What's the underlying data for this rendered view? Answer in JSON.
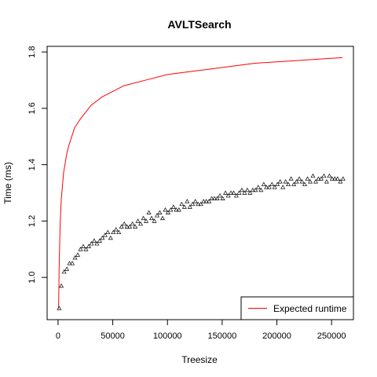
{
  "chart_data": {
    "type": "scatter",
    "title": "AVLTSearch",
    "xlabel": "Treesize",
    "ylabel": "Time (ms)",
    "xlim": [
      -10000,
      270000
    ],
    "ylim": [
      0.85,
      1.82
    ],
    "x_ticks": [
      0,
      50000,
      100000,
      150000,
      200000,
      250000
    ],
    "y_ticks": [
      1.0,
      1.2,
      1.4,
      1.6,
      1.8
    ],
    "legend": {
      "position": "bottom-right",
      "entries": [
        "Expected runtime"
      ]
    },
    "colors": {
      "expected": "#ff0000",
      "measured": "#000000"
    },
    "series": [
      {
        "type": "scatter",
        "marker": "triangle",
        "x": [
          1000,
          3000,
          5500,
          8000,
          10500,
          13000,
          15500,
          18000,
          20500,
          23000,
          25500,
          28000,
          30500,
          33000,
          35500,
          38000,
          40500,
          43000,
          45500,
          48000,
          50500,
          53000,
          55500,
          58000,
          60500,
          63000,
          65500,
          68000,
          70500,
          73000,
          75500,
          78000,
          80500,
          83000,
          85500,
          88000,
          90500,
          93000,
          95500,
          98000,
          100500,
          103000,
          105500,
          108000,
          110500,
          113000,
          115500,
          118000,
          120500,
          123000,
          125500,
          128000,
          130500,
          133000,
          135500,
          138000,
          140500,
          143000,
          145500,
          148000,
          150500,
          153000,
          155500,
          158000,
          160500,
          163000,
          165500,
          168000,
          170500,
          173000,
          175500,
          178000,
          180500,
          183000,
          185500,
          188000,
          190500,
          193000,
          195500,
          198000,
          200500,
          203000,
          205500,
          208000,
          210500,
          213000,
          215500,
          218000,
          220500,
          223000,
          225500,
          228000,
          230500,
          233000,
          235500,
          238000,
          240500,
          243000,
          245500,
          248000,
          250500,
          253000,
          255500,
          258000,
          260500
        ],
        "y": [
          0.89,
          0.97,
          1.02,
          1.03,
          1.05,
          1.05,
          1.07,
          1.08,
          1.1,
          1.11,
          1.1,
          1.11,
          1.12,
          1.13,
          1.12,
          1.13,
          1.14,
          1.15,
          1.16,
          1.14,
          1.16,
          1.17,
          1.16,
          1.18,
          1.19,
          1.18,
          1.18,
          1.19,
          1.18,
          1.2,
          1.19,
          1.21,
          1.2,
          1.23,
          1.21,
          1.2,
          1.22,
          1.23,
          1.21,
          1.24,
          1.23,
          1.24,
          1.25,
          1.24,
          1.24,
          1.26,
          1.25,
          1.27,
          1.25,
          1.26,
          1.27,
          1.26,
          1.26,
          1.27,
          1.27,
          1.27,
          1.28,
          1.28,
          1.28,
          1.29,
          1.28,
          1.3,
          1.29,
          1.3,
          1.3,
          1.29,
          1.3,
          1.31,
          1.3,
          1.31,
          1.3,
          1.31,
          1.31,
          1.32,
          1.31,
          1.33,
          1.32,
          1.32,
          1.33,
          1.32,
          1.33,
          1.34,
          1.32,
          1.34,
          1.33,
          1.35,
          1.33,
          1.34,
          1.35,
          1.34,
          1.33,
          1.35,
          1.34,
          1.36,
          1.34,
          1.35,
          1.35,
          1.36,
          1.34,
          1.36,
          1.35,
          1.35,
          1.35,
          1.34,
          1.35
        ]
      },
      {
        "name": "Expected runtime",
        "type": "line",
        "x": [
          500,
          1000,
          2000,
          3000,
          5000,
          8000,
          10000,
          15000,
          20000,
          30000,
          40000,
          50000,
          60000,
          80000,
          100000,
          120000,
          140000,
          160000,
          180000,
          200000,
          220000,
          240000,
          260000
        ],
        "y": [
          0.89,
          1.04,
          1.2,
          1.28,
          1.37,
          1.44,
          1.47,
          1.53,
          1.56,
          1.61,
          1.64,
          1.66,
          1.68,
          1.7,
          1.72,
          1.73,
          1.74,
          1.75,
          1.76,
          1.765,
          1.77,
          1.775,
          1.78
        ]
      }
    ]
  }
}
